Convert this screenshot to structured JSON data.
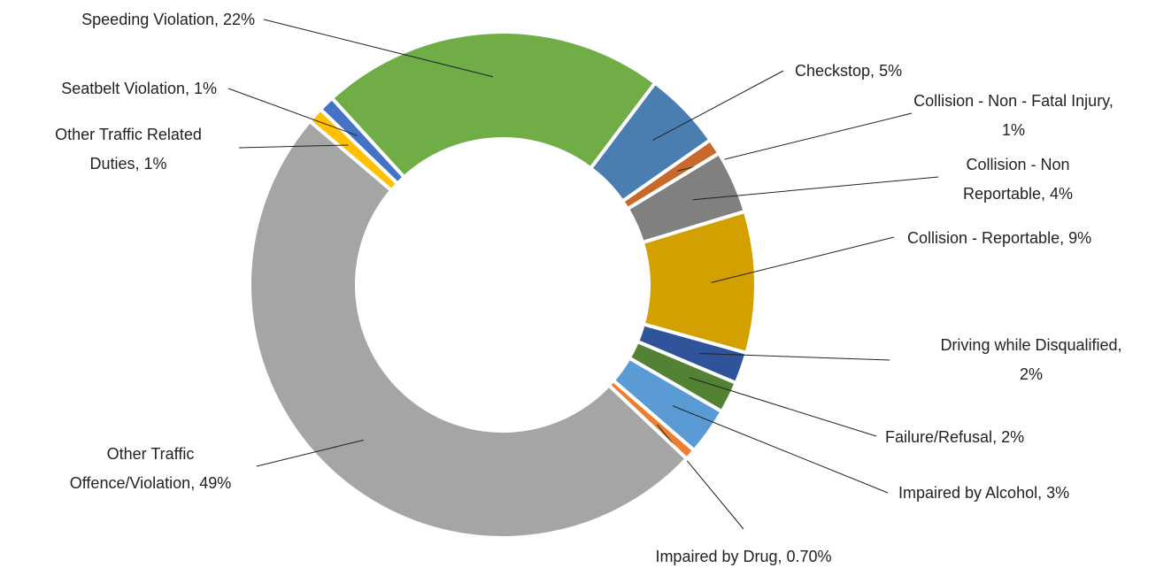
{
  "chart_data": {
    "type": "donut",
    "categories": [
      "Checkstop",
      "Collision - Non - Fatal Injury",
      "Collision - Non Reportable",
      "Collision - Reportable",
      "Driving while Disqualified",
      "Failure/Refusal",
      "Impaired by Alcohol",
      "Impaired by Drug",
      "Other Traffic Offence/Violation",
      "Other Traffic Related Duties",
      "Seatbelt Violation",
      "Speeding Violation"
    ],
    "values": [
      5,
      1,
      4,
      9,
      2,
      2,
      3,
      0.7,
      49,
      1,
      1,
      22
    ],
    "value_labels": [
      "5%",
      "1%",
      "4%",
      "9%",
      "2%",
      "2%",
      "3%",
      "0.70%",
      "49%",
      "1%",
      "1%",
      "22%"
    ],
    "label_separator": ", ",
    "colors": [
      "#4a7eb0",
      "#c8682a",
      "#808080",
      "#d4a000",
      "#2f549a",
      "#548235",
      "#5b9bd5",
      "#ed7d31",
      "#a5a5a5",
      "#ffc000",
      "#4472c4",
      "#70ad47"
    ]
  }
}
